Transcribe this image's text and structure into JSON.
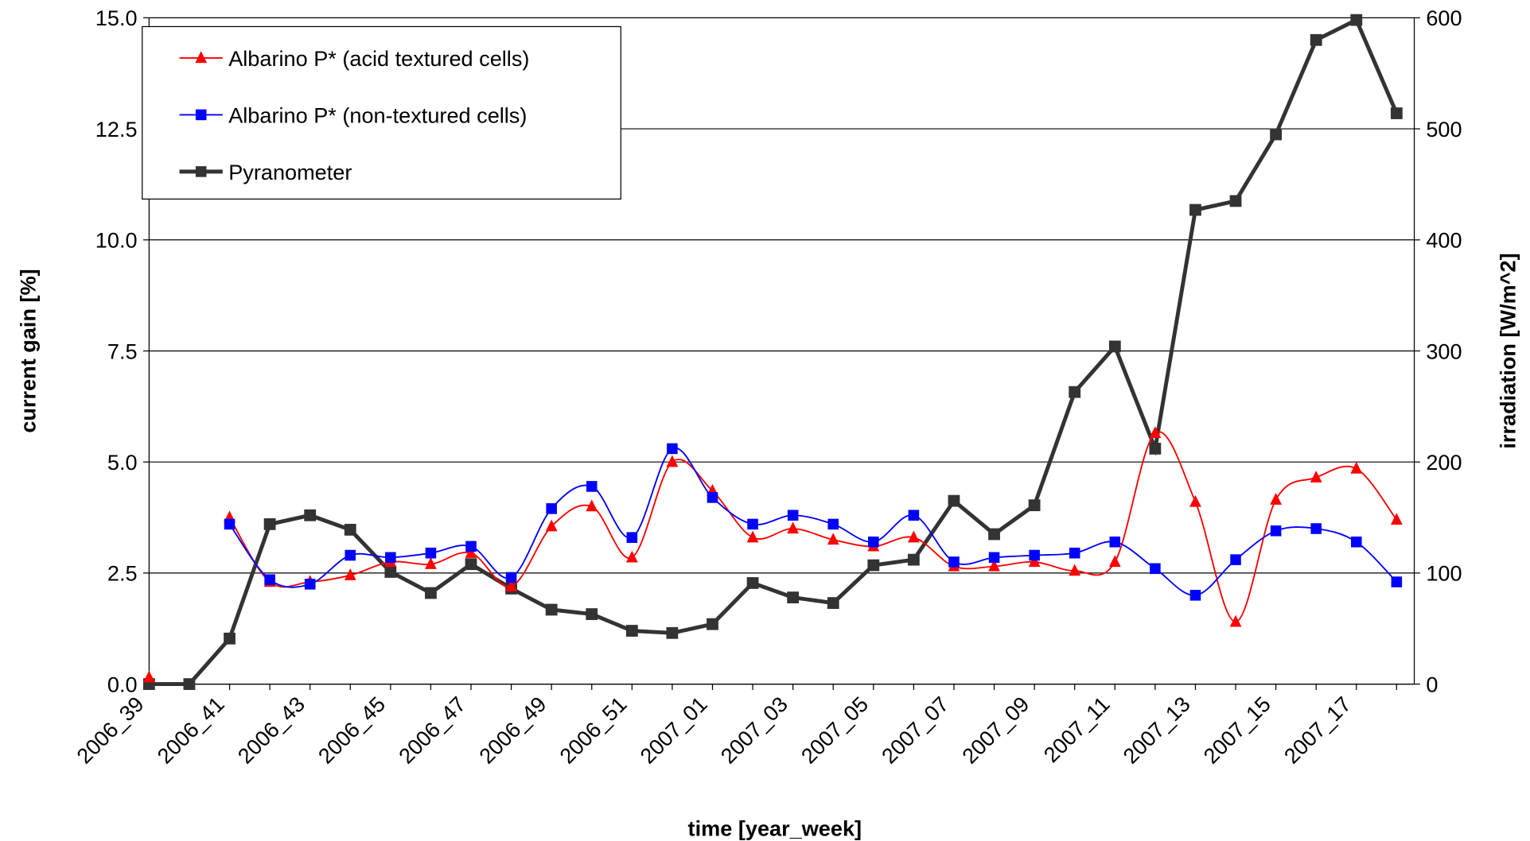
{
  "chart_data": {
    "type": "line",
    "xlabel": "time [year_week]",
    "ylabel": "current gain [%]",
    "y2label": "irradiation [W/m^2]",
    "categories": [
      "2006_39",
      null,
      "2006_41",
      null,
      "2006_43",
      null,
      "2006_45",
      null,
      "2006_47",
      null,
      "2006_49",
      null,
      "2006_51",
      null,
      "2007_01",
      null,
      "2007_03",
      null,
      "2007_05",
      null,
      "2007_07",
      null,
      "2007_09",
      null,
      "2007_11",
      null,
      "2007_13",
      null,
      "2007_15",
      null,
      "2007_17",
      null
    ],
    "series": [
      {
        "name": "Albarino P* (acid textured cells)",
        "color": "#ff0000",
        "marker": "triangle",
        "smooth": true,
        "values": [
          0.15,
          null,
          3.75,
          2.3,
          2.3,
          2.45,
          2.75,
          2.7,
          2.95,
          2.2,
          3.55,
          4.0,
          2.85,
          5.0,
          4.35,
          3.3,
          3.5,
          3.25,
          3.1,
          3.3,
          2.65,
          2.65,
          2.75,
          2.55,
          2.75,
          5.65,
          4.1,
          1.4,
          4.15,
          4.65,
          4.85,
          3.7
        ]
      },
      {
        "name": "Albarino P* (non-textured cells)",
        "color": "#0000ff",
        "marker": "square",
        "smooth": true,
        "values": [
          null,
          null,
          3.6,
          2.35,
          2.25,
          2.9,
          2.85,
          2.95,
          3.1,
          2.4,
          3.95,
          4.45,
          3.3,
          5.3,
          4.2,
          3.6,
          3.8,
          3.6,
          3.2,
          3.8,
          2.75,
          2.85,
          2.9,
          2.95,
          3.2,
          2.6,
          2.0,
          2.8,
          3.45,
          3.5,
          3.2,
          2.3
        ]
      },
      {
        "name": "Pyranometer",
        "color": "#333333",
        "marker": "square",
        "smooth": false,
        "axis": "y2",
        "values": [
          0,
          0,
          41,
          144,
          152,
          139,
          101,
          82,
          108,
          86,
          67,
          63,
          48,
          46,
          54,
          91,
          78,
          73,
          107,
          112,
          165,
          135,
          161,
          263,
          304,
          212,
          427,
          435,
          495,
          580,
          598,
          514
        ]
      }
    ],
    "ylim": [
      0,
      15
    ],
    "yticks": [
      {
        "value": 0,
        "label": "0.0"
      },
      2.5,
      {
        "value": 5,
        "label": "5.0"
      },
      7.5,
      {
        "value": 10,
        "label": "10.0"
      },
      12.5,
      {
        "value": 15,
        "label": "15.0"
      }
    ],
    "y2lim": [
      0,
      600
    ],
    "y2ticks": [
      0,
      100,
      200,
      300,
      400,
      500,
      600
    ],
    "grid": true,
    "legend": "upper left"
  }
}
